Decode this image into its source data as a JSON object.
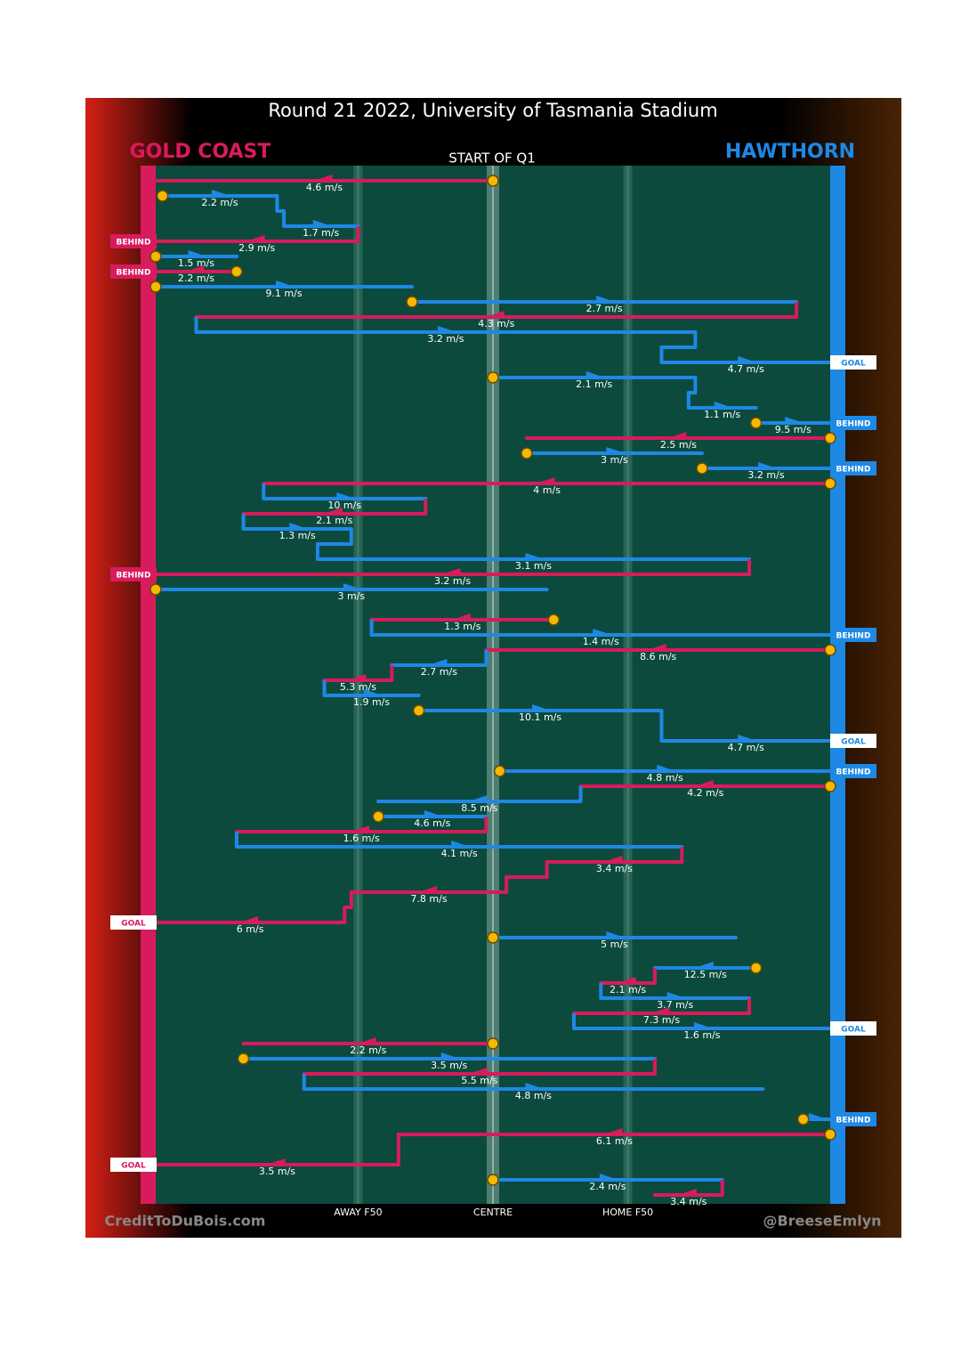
{
  "chart_data": {
    "type": "chain",
    "title": "Round 21 2022, University of Tasmania Stadium",
    "period": "START OF Q1",
    "teams": [
      {
        "name": "GOLD COAST",
        "color": "#d81b5c"
      },
      {
        "name": "HAWTHORN",
        "color": "#1e88e5"
      }
    ],
    "zones": [
      {
        "label": "AWAY F50",
        "x": 30
      },
      {
        "label": "CENTRE",
        "x": 50
      },
      {
        "label": "HOME F50",
        "x": 70
      }
    ],
    "xlim": [
      0,
      100
    ],
    "credit_left": "CreditToDuBois.com",
    "credit_right": "@BreeseEmlyn",
    "segments": [
      {
        "team": 0,
        "row": 0,
        "x": [
          50,
          0
        ],
        "label": "4.6 m/s",
        "start": true
      },
      {
        "team": 1,
        "row": 1,
        "x": [
          1,
          18
        ],
        "label": "2.2 m/s",
        "start": true
      },
      {
        "team": 1,
        "row": 3,
        "x": [
          19,
          30
        ],
        "label": "1.7 m/s"
      },
      {
        "team": 0,
        "row": 4,
        "x": [
          30,
          0
        ],
        "label": "2.9 m/s",
        "end": "BEHIND"
      },
      {
        "team": 1,
        "row": 5,
        "x": [
          0,
          12
        ],
        "label": "1.5 m/s",
        "start": true
      },
      {
        "team": 0,
        "row": 6,
        "x": [
          12,
          0
        ],
        "label": "2.2 m/s",
        "start": true,
        "end": "BEHIND"
      },
      {
        "team": 1,
        "row": 7,
        "x": [
          0,
          38
        ],
        "label": "9.1 m/s",
        "start": true
      },
      {
        "team": 1,
        "row": 8,
        "x": [
          38,
          95
        ],
        "label": "2.7 m/s",
        "start": true
      },
      {
        "team": 0,
        "row": 9,
        "x": [
          95,
          6
        ],
        "label": "4.3 m/s"
      },
      {
        "team": 1,
        "row": 10,
        "x": [
          6,
          80
        ],
        "label": "3.2 m/s"
      },
      {
        "team": 1,
        "row": 12,
        "x": [
          75,
          100
        ],
        "label": "4.7 m/s",
        "end": "GOAL"
      },
      {
        "team": 1,
        "row": 13,
        "x": [
          50,
          80
        ],
        "label": "2.1 m/s",
        "start": true
      },
      {
        "team": 1,
        "row": 15,
        "x": [
          79,
          89
        ],
        "label": "1.1 m/s"
      },
      {
        "team": 1,
        "row": 16,
        "x": [
          89,
          100
        ],
        "label": "9.5 m/s",
        "start": true,
        "end": "BEHIND"
      },
      {
        "team": 0,
        "row": 17,
        "x": [
          100,
          55
        ],
        "label": "2.5 m/s",
        "start": true
      },
      {
        "team": 1,
        "row": 18,
        "x": [
          55,
          81
        ],
        "label": "3 m/s",
        "start": true
      },
      {
        "team": 1,
        "row": 19,
        "x": [
          81,
          100
        ],
        "label": "3.2 m/s",
        "start": true,
        "end": "BEHIND"
      },
      {
        "team": 0,
        "row": 20,
        "x": [
          100,
          16
        ],
        "label": "4 m/s",
        "start": true
      },
      {
        "team": 1,
        "row": 21,
        "x": [
          16,
          40
        ],
        "label": "10 m/s"
      },
      {
        "team": 0,
        "row": 22,
        "x": [
          40,
          13
        ],
        "label": "2.1 m/s"
      },
      {
        "team": 1,
        "row": 23,
        "x": [
          13,
          29
        ],
        "label": "1.3 m/s"
      },
      {
        "team": 1,
        "row": 25,
        "x": [
          24,
          88
        ],
        "label": "3.1 m/s"
      },
      {
        "team": 0,
        "row": 26,
        "x": [
          88,
          0
        ],
        "label": "3.2 m/s",
        "end": "BEHIND"
      },
      {
        "team": 1,
        "row": 27,
        "x": [
          0,
          58
        ],
        "label": "3 m/s",
        "start": true
      },
      {
        "team": 0,
        "row": 29,
        "x": [
          59,
          32
        ],
        "label": "1.3 m/s",
        "start": true
      },
      {
        "team": 1,
        "row": 30,
        "x": [
          32,
          100
        ],
        "label": "1.4 m/s",
        "end": "BEHIND"
      },
      {
        "team": 0,
        "row": 31,
        "x": [
          100,
          49
        ],
        "label": "8.6 m/s",
        "start": true
      },
      {
        "team": 1,
        "row": 32,
        "x": [
          49,
          35
        ],
        "label": "2.7 m/s"
      },
      {
        "team": 0,
        "row": 33,
        "x": [
          35,
          25
        ],
        "label": "5.3 m/s"
      },
      {
        "team": 1,
        "row": 34,
        "x": [
          25,
          39
        ],
        "label": "1.9 m/s"
      },
      {
        "team": 1,
        "row": 35,
        "x": [
          39,
          75
        ],
        "label": "10.1 m/s",
        "start": true
      },
      {
        "team": 1,
        "row": 37,
        "x": [
          75,
          100
        ],
        "label": "4.7 m/s",
        "end": "GOAL"
      },
      {
        "team": 1,
        "row": 39,
        "x": [
          51,
          100
        ],
        "label": "4.8 m/s",
        "start": true,
        "end": "BEHIND"
      },
      {
        "team": 0,
        "row": 40,
        "x": [
          100,
          63
        ],
        "label": "4.2 m/s",
        "start": true
      },
      {
        "team": 1,
        "row": 41,
        "x": [
          63,
          33
        ],
        "label": "8.5 m/s"
      },
      {
        "team": 1,
        "row": 42,
        "x": [
          33,
          49
        ],
        "label": "4.6 m/s",
        "start": true
      },
      {
        "team": 0,
        "row": 43,
        "x": [
          49,
          12
        ],
        "label": "1.6 m/s"
      },
      {
        "team": 1,
        "row": 44,
        "x": [
          12,
          78
        ],
        "label": "4.1 m/s"
      },
      {
        "team": 0,
        "row": 45,
        "x": [
          78,
          58
        ],
        "label": "3.4 m/s"
      },
      {
        "team": 0,
        "row": 47,
        "x": [
          52,
          29
        ],
        "label": "7.8 m/s"
      },
      {
        "team": 0,
        "row": 49,
        "x": [
          28,
          0
        ],
        "label": "6 m/s",
        "end": "GOAL"
      },
      {
        "team": 1,
        "row": 50,
        "x": [
          50,
          86
        ],
        "label": "5 m/s",
        "start": true
      },
      {
        "team": 1,
        "row": 52,
        "x": [
          89,
          74
        ],
        "label": "12.5 m/s",
        "start": true
      },
      {
        "team": 0,
        "row": 53,
        "x": [
          74,
          66
        ],
        "label": "2.1 m/s"
      },
      {
        "team": 1,
        "row": 54,
        "x": [
          66,
          88
        ],
        "label": "3.7 m/s"
      },
      {
        "team": 0,
        "row": 55,
        "x": [
          88,
          62
        ],
        "label": "7.3 m/s"
      },
      {
        "team": 1,
        "row": 56,
        "x": [
          62,
          100
        ],
        "label": "1.6 m/s",
        "end": "GOAL"
      },
      {
        "team": 0,
        "row": 57,
        "x": [
          50,
          13
        ],
        "label": "2.2 m/s",
        "start": true
      },
      {
        "team": 1,
        "row": 58,
        "x": [
          13,
          74
        ],
        "label": "3.5 m/s",
        "start": true
      },
      {
        "team": 0,
        "row": 59,
        "x": [
          74,
          22
        ],
        "label": "5.5 m/s"
      },
      {
        "team": 1,
        "row": 60,
        "x": [
          22,
          90
        ],
        "label": "4.8 m/s"
      },
      {
        "team": 1,
        "row": 62,
        "x": [
          96,
          100
        ],
        "start": true,
        "end": "BEHIND"
      },
      {
        "team": 0,
        "row": 63,
        "x": [
          100,
          36
        ],
        "label": "6.1 m/s",
        "start": true
      },
      {
        "team": 0,
        "row": 65,
        "x": [
          36,
          0
        ],
        "label": "3.5 m/s",
        "end": "GOAL"
      },
      {
        "team": 1,
        "row": 66,
        "x": [
          50,
          84
        ],
        "label": "2.4 m/s",
        "start": true
      },
      {
        "team": 0,
        "row": 67,
        "x": [
          84,
          74
        ],
        "label": "3.4 m/s"
      }
    ]
  }
}
